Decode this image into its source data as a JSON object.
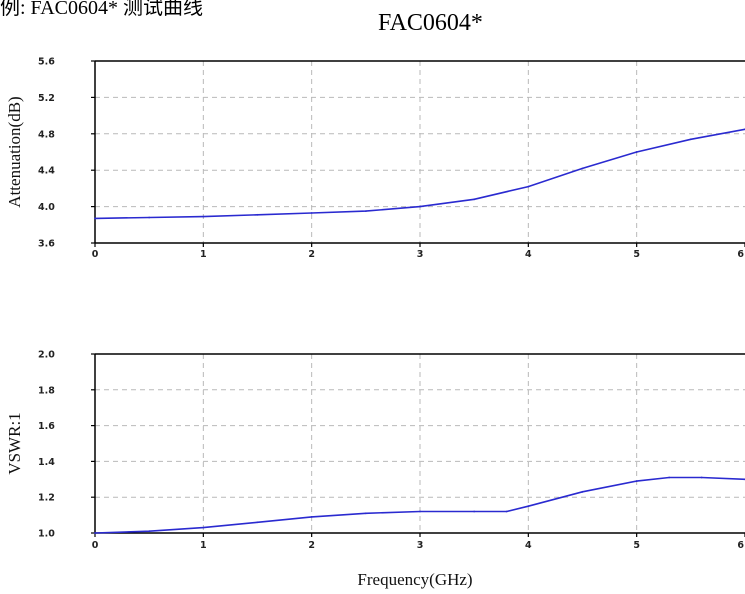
{
  "cut_header_text": "例: FAC0604* 测试曲线",
  "title": "FAC0604*",
  "chart_data": [
    {
      "type": "line",
      "title": "FAC0604*",
      "xlabel": "",
      "ylabel": "Attenuation(dB)",
      "xlim": [
        0,
        6
      ],
      "ylim": [
        3.6,
        5.6
      ],
      "x_ticks": [
        "0",
        "1",
        "2",
        "3",
        "4",
        "5",
        "6"
      ],
      "y_ticks": [
        "3.6",
        "4.0",
        "4.4",
        "4.8",
        "5.2",
        "5.6"
      ],
      "grid": true,
      "series": [
        {
          "color": "#2a2ad0",
          "x": [
            0,
            0.5,
            1,
            1.5,
            2,
            2.5,
            3,
            3.5,
            4,
            4.5,
            5,
            5.5,
            6
          ],
          "y": [
            3.87,
            3.88,
            3.89,
            3.91,
            3.93,
            3.95,
            4.0,
            4.08,
            4.22,
            4.42,
            4.6,
            4.74,
            4.85
          ]
        }
      ]
    },
    {
      "type": "line",
      "xlabel": "Frequency(GHz)",
      "ylabel": "VSWR:1",
      "xlim": [
        0,
        6
      ],
      "ylim": [
        1.0,
        2.0
      ],
      "x_ticks": [
        "0",
        "1",
        "2",
        "3",
        "4",
        "5",
        "6"
      ],
      "y_ticks": [
        "1.0",
        "1.2",
        "1.4",
        "1.6",
        "1.8",
        "2.0"
      ],
      "grid": true,
      "series": [
        {
          "color": "#2a2ad0",
          "x": [
            0,
            0.5,
            1,
            1.5,
            2,
            2.5,
            3,
            3.5,
            3.8,
            4,
            4.5,
            5,
            5.3,
            5.6,
            6
          ],
          "y": [
            1.0,
            1.01,
            1.03,
            1.06,
            1.09,
            1.11,
            1.12,
            1.12,
            1.12,
            1.15,
            1.23,
            1.29,
            1.31,
            1.31,
            1.3
          ]
        }
      ]
    }
  ]
}
